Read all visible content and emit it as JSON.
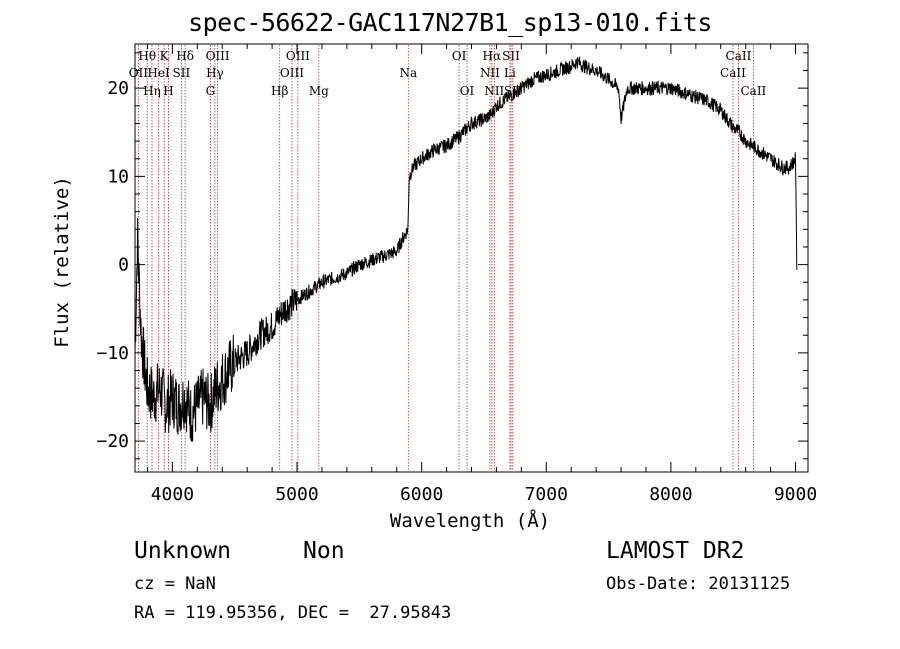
{
  "title": "spec-56622-GAC117N27B1_sp13-010.fits",
  "xlabel": "Wavelength (Å)",
  "ylabel": "Flux (relative)",
  "info": {
    "object_class": "Unknown",
    "object_subclass": "Non",
    "redshift": "cz = NaN",
    "coords": "RA = 119.95356, DEC =  27.95843",
    "survey": "LAMOST DR2",
    "obs_date": "Obs-Date: 20131125"
  },
  "chart_data": {
    "type": "line",
    "title": "spec-56622-GAC117N27B1_sp13-010.fits",
    "xlabel": "Wavelength (Å)",
    "ylabel": "Flux (relative)",
    "xlim": [
      3700,
      9100
    ],
    "ylim": [
      -23.5,
      25
    ],
    "x_ticks": [
      4000,
      5000,
      6000,
      7000,
      8000,
      9000
    ],
    "y_ticks": [
      -20,
      -10,
      0,
      10,
      20
    ],
    "y_tick_labels": [
      "−20",
      "−10",
      "0",
      "10",
      "20"
    ],
    "grid": false,
    "series": [
      {
        "x": [
          3700,
          3720,
          3750,
          3780,
          3800,
          3850,
          3900,
          3950,
          4000,
          4050,
          4100,
          4150,
          4200,
          4250,
          4300,
          4350,
          4400,
          4450,
          4500,
          4600,
          4700,
          4800,
          4900,
          5000,
          5100,
          5200,
          5300,
          5400,
          5500,
          5600,
          5700,
          5800,
          5850,
          5890,
          5900,
          5930,
          6000,
          6100,
          6200,
          6300,
          6400,
          6500,
          6560,
          6600,
          6700,
          6800,
          6900,
          7000,
          7100,
          7200,
          7250,
          7300,
          7400,
          7500,
          7580,
          7600,
          7650,
          7700,
          7800,
          7900,
          8000,
          8100,
          8200,
          8300,
          8400,
          8450,
          8500,
          8550,
          8600,
          8700,
          8800,
          8900,
          8950,
          9000,
          9010
        ],
        "y": [
          -10,
          3,
          -8,
          -12,
          -14,
          -15,
          -14,
          -16,
          -15,
          -16,
          -15,
          -17,
          -16,
          -15,
          -16,
          -14,
          -13,
          -12,
          -11,
          -10,
          -8,
          -7,
          -5,
          -4,
          -3,
          -2,
          -1.5,
          -1,
          0,
          0.5,
          1,
          1.5,
          3,
          4,
          10,
          11,
          12,
          13,
          13.5,
          14.5,
          16,
          16.5,
          17,
          18,
          19,
          20,
          21,
          21.5,
          22,
          22.5,
          23,
          22.5,
          22,
          21,
          20,
          16.5,
          20,
          20,
          20,
          20,
          20,
          19.5,
          19,
          18.5,
          17.5,
          16.5,
          15.5,
          15,
          14,
          13,
          12,
          11,
          11,
          12,
          0
        ]
      }
    ],
    "line_markers": [
      {
        "name": "Hθ",
        "wl": 3798,
        "row": 0
      },
      {
        "name": "OII",
        "wl": 3727,
        "row": 1
      },
      {
        "name": "Hη",
        "wl": 3836,
        "row": 2
      },
      {
        "name": "K",
        "wl": 3934,
        "row": 0
      },
      {
        "name": "HeI",
        "wl": 3889,
        "row": 1
      },
      {
        "name": "H",
        "wl": 3969,
        "row": 2
      },
      {
        "name": "Hδ",
        "wl": 4102,
        "row": 0
      },
      {
        "name": "SII",
        "wl": 4072,
        "row": 1
      },
      {
        "name": "OIII",
        "wl": 4363,
        "row": 0
      },
      {
        "name": "Hγ",
        "wl": 4341,
        "row": 1
      },
      {
        "name": "G",
        "wl": 4305,
        "row": 2
      },
      {
        "name": "Hβ",
        "wl": 4861,
        "row": 2
      },
      {
        "name": "OIII",
        "wl": 5007,
        "row": 0
      },
      {
        "name": "OIII",
        "wl": 4959,
        "row": 1
      },
      {
        "name": "Mg",
        "wl": 5175,
        "row": 2
      },
      {
        "name": "Na",
        "wl": 5893,
        "row": 1
      },
      {
        "name": "OI",
        "wl": 6300,
        "row": 0
      },
      {
        "name": "OI",
        "wl": 6364,
        "row": 2
      },
      {
        "name": "Hα",
        "wl": 6563,
        "row": 0
      },
      {
        "name": "NII",
        "wl": 6548,
        "row": 1
      },
      {
        "name": "NII",
        "wl": 6583,
        "row": 2
      },
      {
        "name": "SII",
        "wl": 6717,
        "row": 0
      },
      {
        "name": "Li",
        "wl": 6708,
        "row": 1
      },
      {
        "name": "SII",
        "wl": 6731,
        "row": 2
      },
      {
        "name": "CaII",
        "wl": 8542,
        "row": 0
      },
      {
        "name": "CaII",
        "wl": 8498,
        "row": 1
      },
      {
        "name": "CaII",
        "wl": 8662,
        "row": 2
      }
    ]
  }
}
